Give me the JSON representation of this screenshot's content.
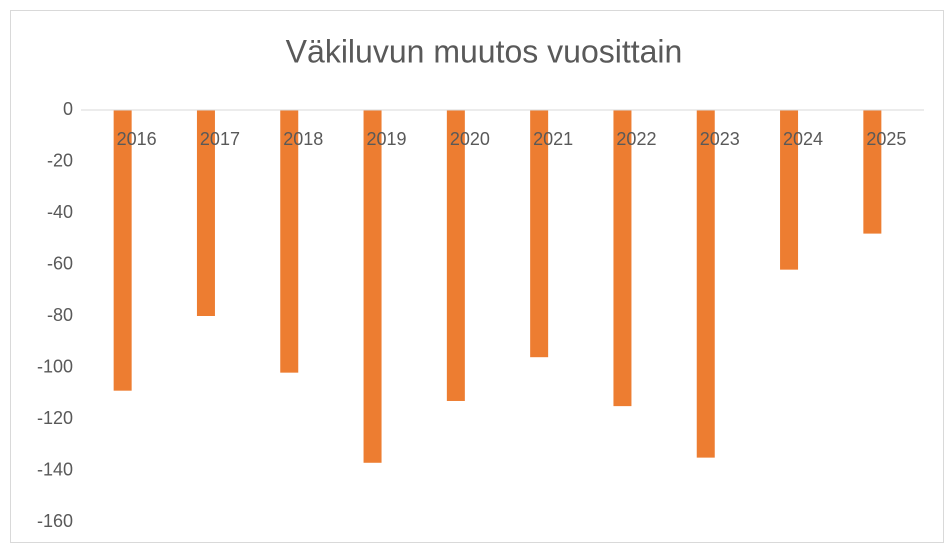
{
  "chart_data": {
    "type": "bar",
    "title": "Väkiluvun muutos vuosittain",
    "categories": [
      "2016",
      "2017",
      "2018",
      "2019",
      "2020",
      "2021",
      "2022",
      "2023",
      "2024",
      "2025"
    ],
    "values": [
      -109,
      -80,
      -102,
      -137,
      -113,
      -96,
      -115,
      -135,
      -62,
      -48
    ],
    "color": "#ed7d31",
    "ylim": [
      -160,
      0
    ],
    "yticks": [
      0,
      -20,
      -40,
      -60,
      -80,
      -100,
      -120,
      -140,
      -160
    ],
    "grid": false
  }
}
